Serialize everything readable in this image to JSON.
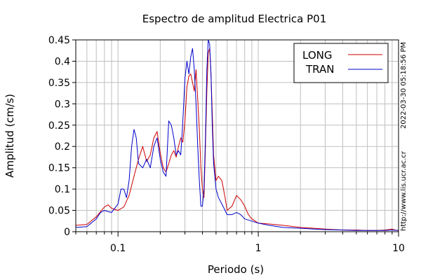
{
  "chart_data": {
    "type": "line",
    "title": "Espectro de amplitud Electrica P01",
    "xlabel": "Periodo (s)",
    "ylabel": "Amplitud (cm/s)",
    "xscale": "log",
    "xlim": [
      0.05,
      10
    ],
    "ylim": [
      0,
      0.45
    ],
    "grid": true,
    "legend_position": "top-right",
    "x_ticks": [
      {
        "value": 0.1,
        "label": "0.1"
      },
      {
        "value": 1,
        "label": "1"
      },
      {
        "value": 10,
        "label": "10"
      }
    ],
    "y_ticks": [
      {
        "value": 0,
        "label": "0"
      },
      {
        "value": 0.05,
        "label": "0.05"
      },
      {
        "value": 0.1,
        "label": "0.1"
      },
      {
        "value": 0.15,
        "label": "0.15"
      },
      {
        "value": 0.2,
        "label": "0.2"
      },
      {
        "value": 0.25,
        "label": "0.25"
      },
      {
        "value": 0.3,
        "label": "0.3"
      },
      {
        "value": 0.35,
        "label": "0.35"
      },
      {
        "value": 0.4,
        "label": "0.4"
      },
      {
        "value": 0.45,
        "label": "0.45"
      }
    ],
    "series": [
      {
        "name": "LONG",
        "color": "#cc0000",
        "x": [
          0.05,
          0.06,
          0.07,
          0.08,
          0.085,
          0.09,
          0.1,
          0.11,
          0.12,
          0.13,
          0.14,
          0.15,
          0.16,
          0.17,
          0.18,
          0.19,
          0.2,
          0.21,
          0.22,
          0.23,
          0.24,
          0.25,
          0.26,
          0.27,
          0.28,
          0.29,
          0.3,
          0.31,
          0.32,
          0.33,
          0.34,
          0.35,
          0.36,
          0.37,
          0.38,
          0.39,
          0.4,
          0.41,
          0.42,
          0.43,
          0.44,
          0.45,
          0.46,
          0.47,
          0.48,
          0.5,
          0.52,
          0.55,
          0.58,
          0.6,
          0.65,
          0.7,
          0.75,
          0.8,
          0.85,
          0.9,
          1.0,
          1.2,
          1.5,
          2.0,
          2.5,
          3.0,
          4.0,
          5.0,
          6.0,
          7.0,
          8.0,
          9.0,
          10.0
        ],
        "y": [
          0.015,
          0.017,
          0.035,
          0.058,
          0.063,
          0.055,
          0.05,
          0.058,
          0.085,
          0.13,
          0.17,
          0.2,
          0.165,
          0.18,
          0.22,
          0.235,
          0.185,
          0.15,
          0.14,
          0.16,
          0.18,
          0.19,
          0.175,
          0.2,
          0.22,
          0.21,
          0.26,
          0.34,
          0.365,
          0.37,
          0.35,
          0.33,
          0.38,
          0.31,
          0.24,
          0.15,
          0.1,
          0.08,
          0.2,
          0.33,
          0.42,
          0.43,
          0.37,
          0.28,
          0.18,
          0.12,
          0.13,
          0.12,
          0.08,
          0.05,
          0.06,
          0.085,
          0.075,
          0.06,
          0.04,
          0.03,
          0.02,
          0.018,
          0.015,
          0.01,
          0.008,
          0.006,
          0.004,
          0.004,
          0.003,
          0.003,
          0.004,
          0.006,
          0.002
        ]
      },
      {
        "name": "TRAN",
        "color": "#0000cc",
        "x": [
          0.05,
          0.06,
          0.07,
          0.075,
          0.08,
          0.09,
          0.1,
          0.105,
          0.11,
          0.115,
          0.12,
          0.125,
          0.13,
          0.135,
          0.14,
          0.15,
          0.16,
          0.17,
          0.18,
          0.19,
          0.2,
          0.21,
          0.22,
          0.23,
          0.24,
          0.25,
          0.26,
          0.27,
          0.28,
          0.29,
          0.3,
          0.31,
          0.32,
          0.33,
          0.34,
          0.35,
          0.36,
          0.37,
          0.38,
          0.39,
          0.4,
          0.41,
          0.42,
          0.43,
          0.44,
          0.45,
          0.46,
          0.47,
          0.48,
          0.5,
          0.52,
          0.55,
          0.58,
          0.6,
          0.65,
          0.7,
          0.75,
          0.8,
          0.9,
          1.0,
          1.2,
          1.5,
          2.0,
          2.5,
          3.0,
          4.0,
          5.0,
          6.0,
          7.0,
          8.0,
          9.0,
          10.0
        ],
        "y": [
          0.01,
          0.012,
          0.03,
          0.045,
          0.05,
          0.045,
          0.065,
          0.1,
          0.1,
          0.08,
          0.12,
          0.2,
          0.24,
          0.22,
          0.16,
          0.15,
          0.17,
          0.15,
          0.2,
          0.22,
          0.17,
          0.14,
          0.13,
          0.26,
          0.25,
          0.22,
          0.18,
          0.19,
          0.18,
          0.26,
          0.36,
          0.4,
          0.37,
          0.41,
          0.43,
          0.38,
          0.3,
          0.2,
          0.12,
          0.06,
          0.06,
          0.1,
          0.22,
          0.38,
          0.45,
          0.44,
          0.37,
          0.25,
          0.16,
          0.1,
          0.08,
          0.065,
          0.05,
          0.04,
          0.04,
          0.045,
          0.04,
          0.03,
          0.025,
          0.02,
          0.015,
          0.01,
          0.008,
          0.006,
          0.005,
          0.004,
          0.003,
          0.003,
          0.003,
          0.003,
          0.004,
          0.003
        ]
      }
    ]
  },
  "side_texts": {
    "timestamp": "2022-03-30 05:18:56 PM",
    "url": "http://www.lis.ucr.ac.cr"
  }
}
